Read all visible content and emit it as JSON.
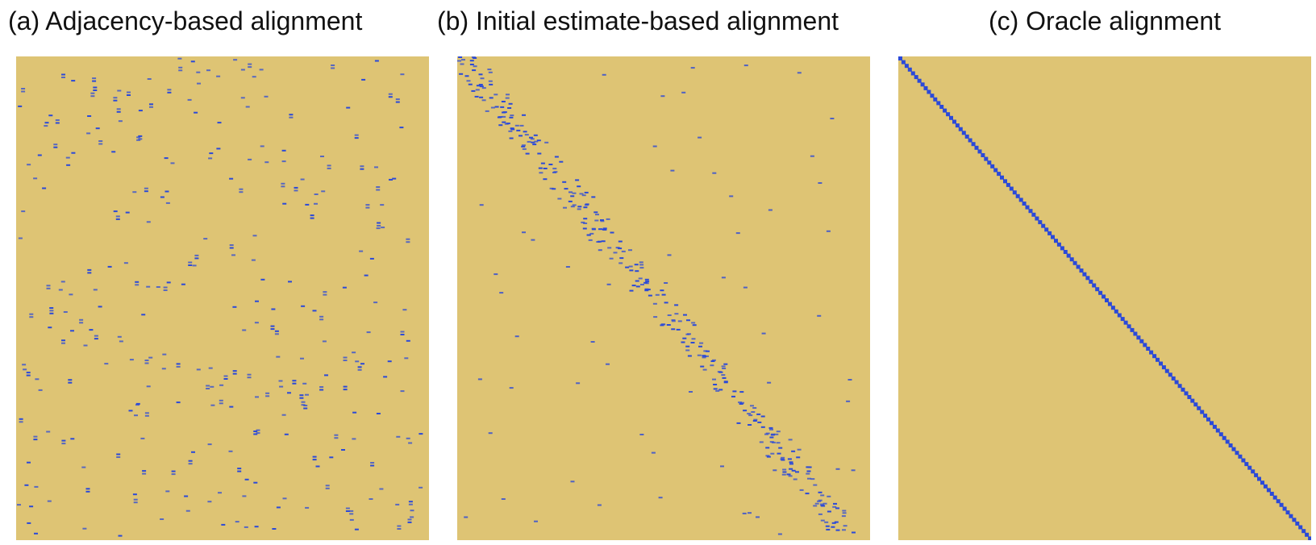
{
  "colors": {
    "background": "#dec474",
    "mark": "#2b49d8"
  },
  "panels": [
    {
      "title": "(a) Adjacency-based alignment"
    },
    {
      "title": "(b) Initial estimate-based alignment"
    },
    {
      "title": "(c) Oracle alignment"
    }
  ],
  "chart_data": [
    {
      "type": "heatmap",
      "title": "(a) Adjacency-based alignment",
      "pattern": "scattered",
      "grid": false
    },
    {
      "type": "heatmap",
      "title": "(b) Initial estimate-based alignment",
      "pattern": "noisy-diagonal",
      "grid": false
    },
    {
      "type": "heatmap",
      "title": "(c) Oracle alignment",
      "pattern": "diagonal",
      "grid": false
    }
  ]
}
